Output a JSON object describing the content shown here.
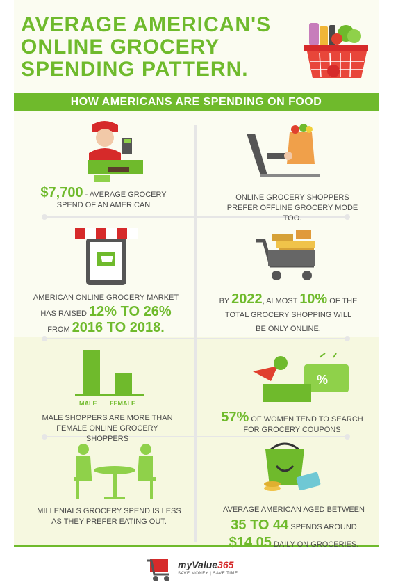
{
  "title": {
    "line1": "AVERAGE AMERICAN'S",
    "line2": "ONLINE GROCERY",
    "line3": "SPENDING PATTERN."
  },
  "subtitle": "HOW AMERICANS ARE SPENDING ON FOOD",
  "facts": {
    "f1": {
      "big": "$7,700",
      "text": " - AVERAGE GROCERY SPEND OF AN AMERICAN"
    },
    "f2": {
      "text": "ONLINE GROCERY SHOPPERS PREFER OFFLINE GROCERY MODE TOO."
    },
    "f3": {
      "text1": "AMERICAN ONLINE GROCERY MARKET",
      "pre": "HAS RAISED ",
      "big1": "12% TO 26%",
      "pre2": "FROM ",
      "big2": "2016 TO 2018."
    },
    "f4": {
      "pre": "BY ",
      "big1": "2022",
      "mid": ", ALMOST ",
      "big2": "10%",
      "post": " OF THE",
      "line2": "TOTAL GROCERY SHOPPING WILL",
      "line3": "BE ONLY ONLINE."
    },
    "f5": {
      "male_label": "MALE",
      "female_label": "FEMALE",
      "text": "MALE SHOPPERS ARE MORE THAN FEMALE ONLINE GROCERY SHOPPERS"
    },
    "f6": {
      "big": "57%",
      "text": " OF WOMEN TEND TO SEARCH FOR GROCERY COUPONS"
    },
    "f7": {
      "text": "MILLENIALS GROCERY SPEND IS LESS AS THEY PREFER EATING  OUT."
    },
    "f8": {
      "line1": "AVERAGE AMERICAN AGED BETWEEN",
      "big1": "35 TO 44",
      "mid": " SPENDS AROUND",
      "big2": "$14.05",
      "post": " DAILY ON GROCERIES."
    }
  },
  "logo": {
    "brand": "myValue",
    "num": "365",
    "tag": "SAVE MONEY | SAVE TIME"
  },
  "colors": {
    "accent": "#6fba2c",
    "red": "#d62a2a"
  }
}
